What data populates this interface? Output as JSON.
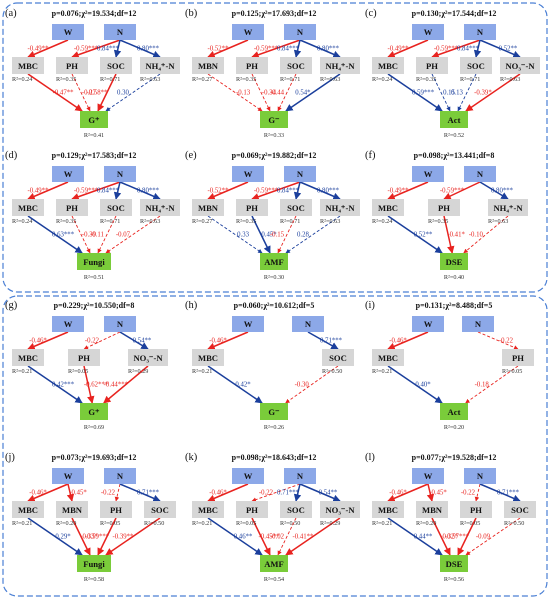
{
  "colors": {
    "red": "#e8231f",
    "blue": "#1b3f9c",
    "var_box": "#d6d6d6",
    "top_box": "#8ca8e8",
    "resp_box": "#7acc3a",
    "frame": "#4a7fd4"
  },
  "panels": [
    {
      "label": "(a)",
      "header": "p=0.076;χ²=19.534;df=12",
      "top": [
        "W",
        "N"
      ],
      "mid": [
        "MBC",
        "PH",
        "SOC",
        "NH₄⁺-N"
      ],
      "mid_r2": [
        "R²=0.24",
        "R²=0.35",
        "R²=0.71",
        "R²=0.63"
      ],
      "resp": "G⁺",
      "resp_r2": "R²=0.41",
      "coefs": [
        "-0.49**",
        "-0.59***",
        "0.84***",
        "0.80***",
        "-0.47**",
        "-0.27",
        "-0.58**",
        "0.30"
      ]
    },
    {
      "label": "(b)",
      "header": "p=0.125;χ²=17.693;df=12",
      "top": [
        "W",
        "N"
      ],
      "mid": [
        "MBN",
        "PH",
        "SOC",
        "NH₄⁺-N"
      ],
      "mid_r2": [
        "R²=0.27",
        "R²=0.35",
        "R²=0.71",
        "R²=0.63"
      ],
      "resp": "G⁻",
      "resp_r2": "R²=0.33",
      "coefs": [
        "-0.52**",
        "-0.59***",
        "0.84***",
        "0.80***",
        "-0.13",
        "-0.34",
        "-0.44",
        "0.54*"
      ]
    },
    {
      "label": "(c)",
      "header": "p=0.130;χ²=17.544;df=12",
      "top": [
        "W",
        "N"
      ],
      "mid": [
        "MBC",
        "PH",
        "SOC",
        "NO₃⁻-N"
      ],
      "mid_r2": [
        "R²=0.24",
        "R²=0.35",
        "R²=0.71",
        "R²=0.63"
      ],
      "resp": "Act",
      "resp_r2": "R²=0.52",
      "coefs": [
        "-0.49**",
        "-0.59***",
        "0.84***",
        "0.52**",
        "0.59***",
        "0.15",
        "0.13",
        "-0.39*"
      ]
    },
    {
      "label": "(d)",
      "header": "p=0.129;χ²=17.583;df=12",
      "top": [
        "W",
        "N"
      ],
      "mid": [
        "MBC",
        "PH",
        "SOC",
        "NH₄⁺-N"
      ],
      "mid_r2": [
        "R²=0.24",
        "R²=0.35",
        "R²=0.71",
        "R²=0.63"
      ],
      "resp": "Fungi",
      "resp_r2": "R²=0.51",
      "coefs": [
        "-0.49**",
        "-0.59***",
        "0.84***",
        "0.80***",
        "0.63***",
        "-0.39",
        "-0.11",
        "-0.07"
      ]
    },
    {
      "label": "(e)",
      "header": "p=0.069;χ²=19.882;df=12",
      "top": [
        "W",
        "N"
      ],
      "mid": [
        "MBN",
        "PH",
        "SOC",
        "NH₄⁺-N"
      ],
      "mid_r2": [
        "R²=0.27",
        "R²=0.35",
        "R²=0.71",
        "R²=0.63"
      ],
      "resp": "AMF",
      "resp_r2": "R²=0.30",
      "coefs": [
        "-0.52**",
        "-0.59***",
        "0.84***",
        "0.80***",
        "0.33",
        "0.45*",
        "-0.15",
        "0.28"
      ]
    },
    {
      "label": "(f)",
      "header": "p=0.098;χ²=13.441;df=8",
      "top": [
        "W",
        "N"
      ],
      "mid": [
        "MBC",
        "PH",
        "NH₄⁺-N"
      ],
      "mid_r2": [
        "R²=0.24",
        "R²=0.35",
        "R²=0.63"
      ],
      "resp": "DSE",
      "resp_r2": "R²=0.40",
      "coefs": [
        "-0.49**",
        "-0.59***",
        "0.80***",
        "0.52**",
        "-0.41*",
        "-0.10"
      ]
    },
    {
      "label": "(g)",
      "header": "p=0.229;χ²=10.550;df=8",
      "top": [
        "W",
        "N"
      ],
      "mid": [
        "MBC",
        "PH",
        "NO₃⁻-N"
      ],
      "mid_r2": [
        "R²=0.21",
        "R²=0.05",
        "R²=0.29"
      ],
      "resp": "G⁺",
      "resp_r2": "R²=0.69",
      "coefs": [
        "-0.46*",
        "-0.22",
        "0.54**",
        "0.42***",
        "-0.62***",
        "-0.44***"
      ]
    },
    {
      "label": "(h)",
      "header": "p=0.060;χ²=10.612;df=5",
      "top": [
        "W",
        "N"
      ],
      "mid": [
        "MBC",
        "SOC"
      ],
      "mid_r2": [
        "R²=0.21",
        "R²=0.50"
      ],
      "resp": "G⁻",
      "resp_r2": "R²=0.26",
      "coefs": [
        "-0.46*",
        "0.71***",
        "0.42*",
        "-0.30"
      ]
    },
    {
      "label": "(i)",
      "header": "p=0.131;χ²=8.488;df=5",
      "top": [
        "W",
        "N"
      ],
      "mid": [
        "MBC",
        "PH"
      ],
      "mid_r2": [
        "R²=0.21",
        "R²=0.05"
      ],
      "resp": "Act",
      "resp_r2": "R²=0.20",
      "coefs": [
        "-0.46*",
        "-0.22",
        "0.40*",
        "-0.18"
      ]
    },
    {
      "label": "(j)",
      "header": "p=0.073;χ²=19.693;df=12",
      "top": [
        "W",
        "N"
      ],
      "mid": [
        "MBC",
        "MBN",
        "PH",
        "SOC"
      ],
      "mid_r2": [
        "R²=0.21",
        "R²=0.20",
        "R²=0.05",
        "R²=0.50"
      ],
      "resp": "Fungi",
      "resp_r2": "R²=0.58",
      "coefs": [
        "-0.46*",
        "-0.45*",
        "-0.22",
        "0.71***",
        "0.29*",
        "-0.33*",
        "-0.59***",
        "-0.39**"
      ]
    },
    {
      "label": "(k)",
      "header": "p=0.098;χ²=18.643;df=12",
      "top": [
        "W",
        "N"
      ],
      "mid": [
        "MBC",
        "PH",
        "SOC",
        "NO₃⁻-N"
      ],
      "mid_r2": [
        "R²=0.21",
        "R²=0.05",
        "R²=0.50",
        "R²=0.29"
      ],
      "resp": "AMF",
      "resp_r2": "R²=0.54",
      "coefs": [
        "-0.46*",
        "-0.22",
        "0.71***",
        "0.54**",
        "0.46**",
        "-0.45**",
        "-0.02",
        "-0.41**"
      ]
    },
    {
      "label": "(l)",
      "header": "p=0.077;χ²=19.528;df=12",
      "top": [
        "W",
        "N"
      ],
      "mid": [
        "MBC",
        "MBN",
        "PH",
        "SOC"
      ],
      "mid_r2": [
        "R²=0.21",
        "R²=0.20",
        "R²=0.05",
        "R²=0.50"
      ],
      "resp": "DSE",
      "resp_r2": "R²=0.56",
      "coefs": [
        "-0.46*",
        "-0.45*",
        "-0.22",
        "0.71***",
        "0.44**",
        "-0.32*",
        "-0.57***",
        "-0.09"
      ]
    }
  ]
}
